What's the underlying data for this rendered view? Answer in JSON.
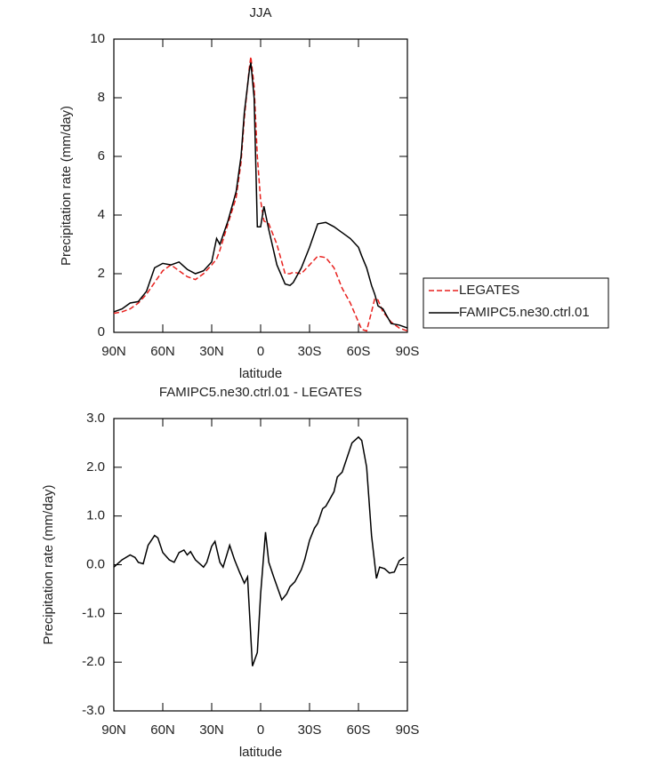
{
  "chart_data": [
    {
      "type": "line",
      "title": "JJA",
      "x_label": "latitude",
      "y_label": "Precipitation rate (mm/day)",
      "x": [
        90,
        85,
        80,
        75,
        70,
        65,
        60,
        55,
        50,
        45,
        40,
        35,
        30,
        27,
        25,
        20,
        15,
        12,
        10,
        7,
        6,
        4,
        2,
        0,
        -2,
        -5,
        -10,
        -15,
        -18,
        -20,
        -25,
        -30,
        -35,
        -40,
        -45,
        -50,
        -55,
        -60,
        -62,
        -65,
        -68,
        -70,
        -72,
        -75,
        -80,
        -85,
        -90
      ],
      "series": [
        {
          "name": "LEGATES",
          "color": "#e8211e",
          "linestyle": "dashed",
          "values": [
            0.65,
            0.7,
            0.8,
            1.0,
            1.3,
            1.7,
            2.1,
            2.3,
            2.1,
            1.9,
            1.8,
            2.0,
            2.3,
            2.5,
            2.8,
            3.7,
            4.6,
            5.8,
            7.3,
            9.0,
            9.4,
            8.4,
            6.0,
            4.5,
            3.8,
            3.7,
            3.0,
            2.0,
            2.0,
            2.05,
            2.0,
            2.3,
            2.6,
            2.55,
            2.2,
            1.5,
            1.0,
            0.35,
            0.1,
            0.05,
            0.7,
            1.15,
            1.1,
            0.7,
            0.35,
            0.15,
            0.05
          ]
        },
        {
          "name": "FAMIPC5.ne30.ctrl.01",
          "color": "#000000",
          "linestyle": "solid",
          "values": [
            0.7,
            0.8,
            1.0,
            1.05,
            1.4,
            2.2,
            2.35,
            2.3,
            2.4,
            2.15,
            2.0,
            2.1,
            2.4,
            3.2,
            3.0,
            3.8,
            4.8,
            6.0,
            7.5,
            8.9,
            9.2,
            8.0,
            3.6,
            3.6,
            4.3,
            3.5,
            2.3,
            1.65,
            1.6,
            1.7,
            2.2,
            2.9,
            3.7,
            3.75,
            3.6,
            3.4,
            3.2,
            2.9,
            2.6,
            2.2,
            1.6,
            1.3,
            0.9,
            0.8,
            0.3,
            0.25,
            0.15
          ]
        }
      ],
      "xlim": [
        90,
        -90
      ],
      "xticks": [
        {
          "value": 90,
          "label": "90N"
        },
        {
          "value": 60,
          "label": "60N"
        },
        {
          "value": 30,
          "label": "30N"
        },
        0,
        {
          "value": -30,
          "label": "30S"
        },
        {
          "value": -60,
          "label": "60S"
        },
        {
          "value": -90,
          "label": "90S"
        }
      ],
      "ylim": [
        0,
        10
      ],
      "yticks": [
        0,
        2,
        4,
        6,
        8,
        10
      ],
      "legend": "right"
    },
    {
      "type": "line",
      "title": "FAMIPC5.ne30.ctrl.01 - LEGATES",
      "x_label": "latitude",
      "y_label": "Precipitation rate (mm/day)",
      "x": [
        90,
        85,
        80,
        77,
        75,
        72,
        69,
        65,
        63,
        60,
        56,
        53,
        50,
        47,
        45,
        43,
        40,
        35,
        33,
        30,
        28,
        25,
        23,
        19,
        16,
        13,
        10,
        8,
        5,
        2,
        0,
        -3,
        -5,
        -8,
        -13,
        -16,
        -18,
        -21,
        -25,
        -27,
        -30,
        -33,
        -35,
        -38,
        -40,
        -45,
        -47,
        -50,
        -53,
        -56,
        -60,
        -62,
        -65,
        -68,
        -71,
        -73,
        -76,
        -79,
        -82,
        -85,
        -88
      ],
      "color": "#000000",
      "values": [
        -0.05,
        0.1,
        0.2,
        0.15,
        0.05,
        0.02,
        0.4,
        0.6,
        0.55,
        0.25,
        0.1,
        0.05,
        0.25,
        0.3,
        0.2,
        0.27,
        0.1,
        -0.05,
        0.05,
        0.38,
        0.48,
        0.05,
        -0.05,
        0.4,
        0.1,
        -0.15,
        -0.38,
        -0.25,
        -2.08,
        -1.8,
        -0.6,
        0.67,
        0.05,
        -0.25,
        -0.72,
        -0.6,
        -0.45,
        -0.35,
        -0.1,
        0.1,
        0.5,
        0.75,
        0.85,
        1.15,
        1.2,
        1.5,
        1.8,
        1.9,
        2.2,
        2.5,
        2.62,
        2.55,
        2.0,
        0.6,
        -0.28,
        -0.05,
        -0.08,
        -0.17,
        -0.15,
        0.08,
        0.15
      ],
      "xlim": [
        90,
        -90
      ],
      "xticks": [
        {
          "value": 90,
          "label": "90N"
        },
        {
          "value": 60,
          "label": "60N"
        },
        {
          "value": 30,
          "label": "30N"
        },
        0,
        {
          "value": -30,
          "label": "30S"
        },
        {
          "value": -60,
          "label": "60S"
        },
        {
          "value": -90,
          "label": "90S"
        }
      ],
      "ylim": [
        -3,
        3
      ],
      "yticks": [
        {
          "value": -3,
          "label": "-3.0"
        },
        {
          "value": -2,
          "label": "-2.0"
        },
        {
          "value": -1,
          "label": "-1.0"
        },
        {
          "value": 0,
          "label": "0.0"
        },
        {
          "value": 1,
          "label": "1.0"
        },
        {
          "value": 2,
          "label": "2.0"
        },
        {
          "value": 3,
          "label": "3.0"
        }
      ]
    }
  ]
}
